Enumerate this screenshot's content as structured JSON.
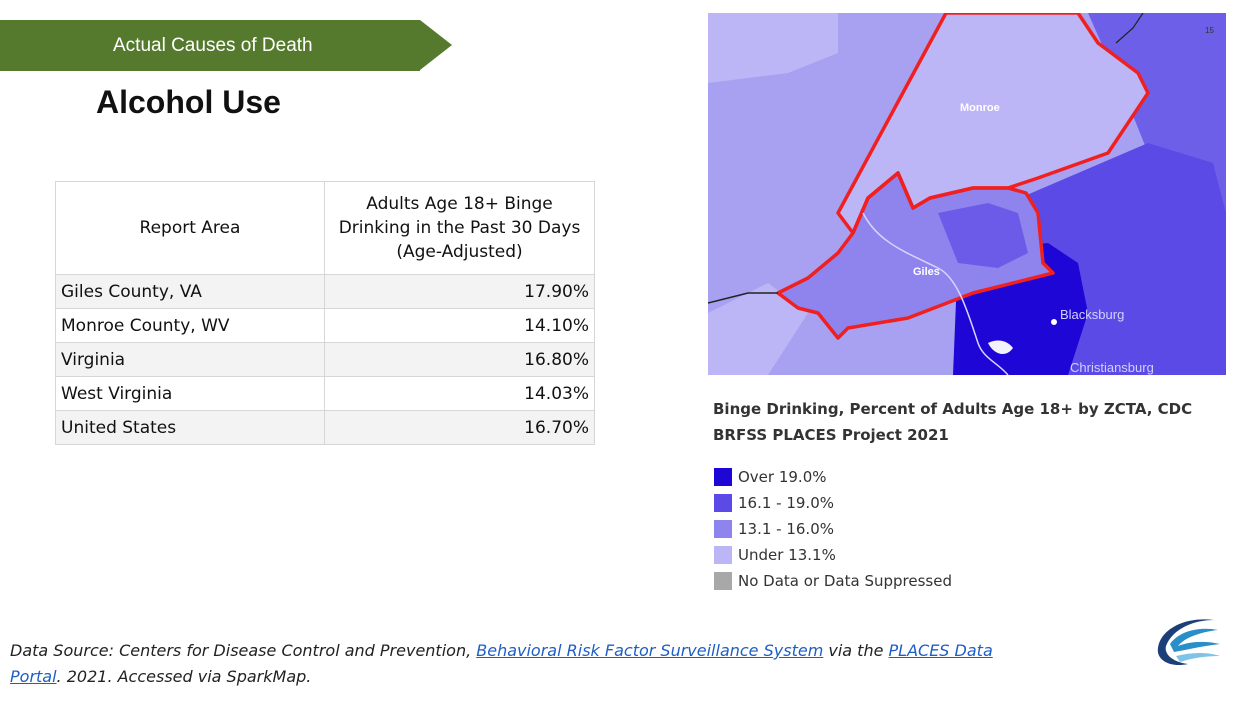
{
  "banner": {
    "label": "Actual Causes of Death"
  },
  "title": "Alcohol Use",
  "table": {
    "headers": [
      "Report Area",
      "Adults Age 18+ Binge Drinking in the Past 30 Days (Age-Adjusted)"
    ],
    "rows": [
      {
        "area": "Giles County, VA",
        "value": "17.90%"
      },
      {
        "area": "Monroe County, WV",
        "value": "14.10%"
      },
      {
        "area": "Virginia",
        "value": "16.80%"
      },
      {
        "area": "West Virginia",
        "value": "14.03%"
      },
      {
        "area": "United States",
        "value": "16.70%"
      }
    ]
  },
  "map": {
    "slide_number": "15",
    "labels": {
      "monroe": "Monroe",
      "giles": "Giles",
      "blacksburg": "Blacksburg",
      "christiansburg": "Christiansburg"
    },
    "caption": "Binge Drinking, Percent of Adults Age 18+ by ZCTA, CDC BRFSS PLACES Project 2021",
    "legend": [
      {
        "label": "Over 19.0%",
        "color": "#1d06d6"
      },
      {
        "label": "16.1 - 19.0%",
        "color": "#5b4ae6"
      },
      {
        "label": "13.1 - 16.0%",
        "color": "#8f84ee"
      },
      {
        "label": "Under 13.1%",
        "color": "#bdb6f6"
      },
      {
        "label": "No Data or Data Suppressed",
        "color": "#a8a8a8"
      }
    ],
    "colors": {
      "outline": "#f02020",
      "water": "#e8e8ff"
    }
  },
  "source": {
    "prefix": "Data Source: Centers for Disease Control and Prevention, ",
    "link1": "Behavioral Risk Factor Surveillance System",
    "middle": " via the ",
    "link2": "PLACES Data Portal",
    "suffix": ". 2021. Accessed via SparkMap."
  },
  "logo": {
    "icon": "swoosh-logo-icon"
  }
}
